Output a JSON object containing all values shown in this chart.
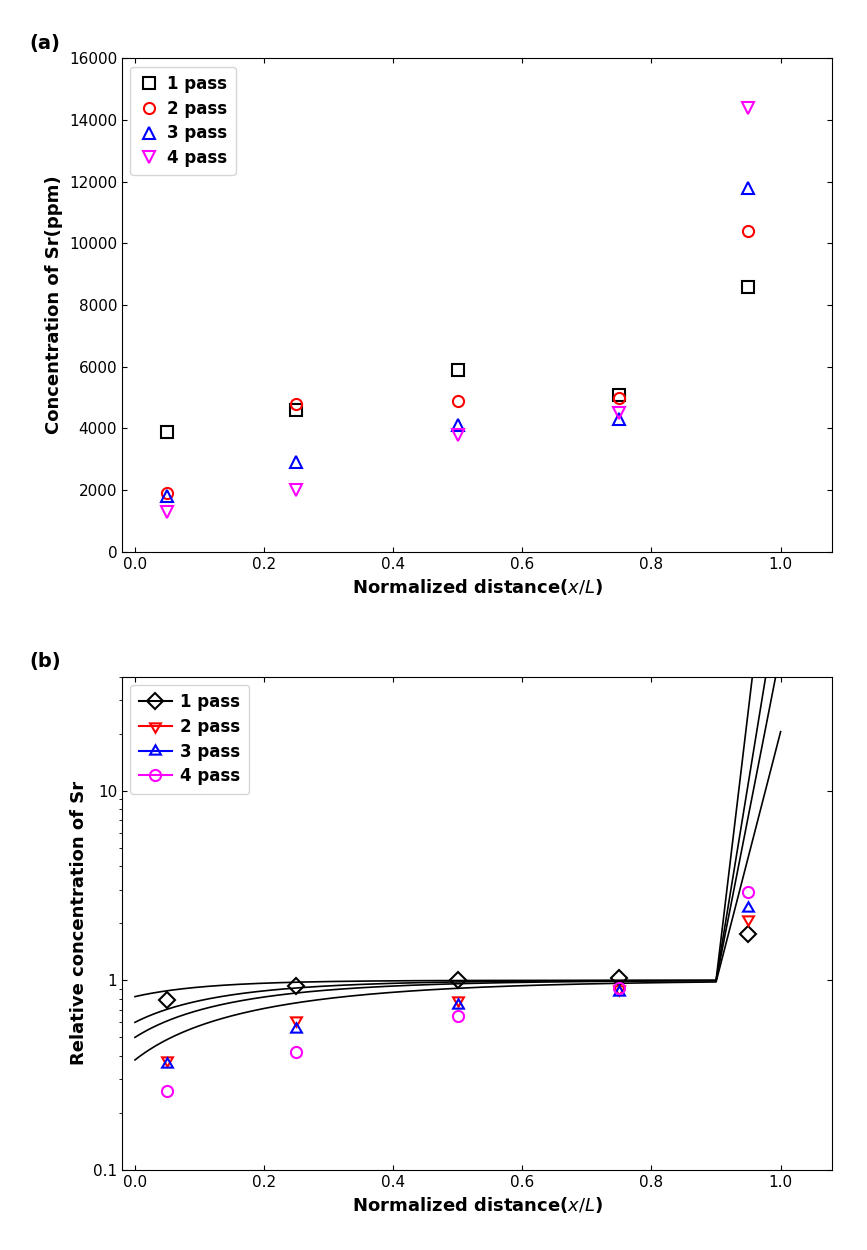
{
  "panel_a": {
    "label": "(a)",
    "xlabel": "Normalized distance($x/L$)",
    "ylabel": "Concentration of Sr(ppm)",
    "ylim": [
      0,
      16000
    ],
    "yticks": [
      0,
      2000,
      4000,
      6000,
      8000,
      10000,
      12000,
      14000,
      16000
    ],
    "xlim": [
      -0.02,
      1.08
    ],
    "xticks": [
      0.0,
      0.2,
      0.4,
      0.6,
      0.8,
      1.0
    ],
    "passes": {
      "1 pass": {
        "x": [
          0.05,
          0.25,
          0.5,
          0.75,
          0.95
        ],
        "y": [
          3900,
          4600,
          5900,
          5100,
          8600
        ],
        "color": "black",
        "marker": "s",
        "markersize": 8
      },
      "2 pass": {
        "x": [
          0.05,
          0.25,
          0.5,
          0.75,
          0.95
        ],
        "y": [
          1900,
          4800,
          4900,
          5000,
          10400
        ],
        "color": "red",
        "marker": "o",
        "markersize": 8
      },
      "3 pass": {
        "x": [
          0.05,
          0.25,
          0.5,
          0.75,
          0.95
        ],
        "y": [
          1800,
          2900,
          4100,
          4300,
          11800
        ],
        "color": "blue",
        "marker": "^",
        "markersize": 8
      },
      "4 pass": {
        "x": [
          0.05,
          0.25,
          0.5,
          0.75,
          0.95
        ],
        "y": [
          1300,
          2000,
          3800,
          4500,
          14400
        ],
        "color": "magenta",
        "marker": "v",
        "markersize": 8
      }
    }
  },
  "panel_b": {
    "label": "(b)",
    "xlabel": "Normalized distance($x/L$)",
    "ylabel": "Relative concentration of Sr",
    "ylim": [
      0.1,
      40
    ],
    "xlim": [
      -0.02,
      1.08
    ],
    "xticks": [
      0.0,
      0.2,
      0.4,
      0.6,
      0.8,
      1.0
    ],
    "passes": {
      "1 pass": {
        "x": [
          0.05,
          0.25,
          0.5,
          0.75,
          0.95
        ],
        "y": [
          0.79,
          0.93,
          1.0,
          1.03,
          1.75
        ],
        "color": "black",
        "marker": "D",
        "markersize": 8,
        "k": 0.82
      },
      "2 pass": {
        "x": [
          0.05,
          0.25,
          0.5,
          0.75,
          0.95
        ],
        "y": [
          0.38,
          0.62,
          0.79,
          0.9,
          2.1
        ],
        "color": "red",
        "marker": "left",
        "markersize": 9,
        "k": 0.6
      },
      "3 pass": {
        "x": [
          0.05,
          0.25,
          0.5,
          0.75,
          0.95
        ],
        "y": [
          0.36,
          0.55,
          0.74,
          0.87,
          2.4
        ],
        "color": "blue",
        "marker": "right",
        "markersize": 9,
        "k": 0.5
      },
      "4 pass": {
        "x": [
          0.05,
          0.25,
          0.5,
          0.75,
          0.95
        ],
        "y": [
          0.26,
          0.42,
          0.65,
          0.91,
          2.92
        ],
        "color": "magenta",
        "marker": "o",
        "markersize": 8,
        "k": 0.38
      }
    }
  }
}
